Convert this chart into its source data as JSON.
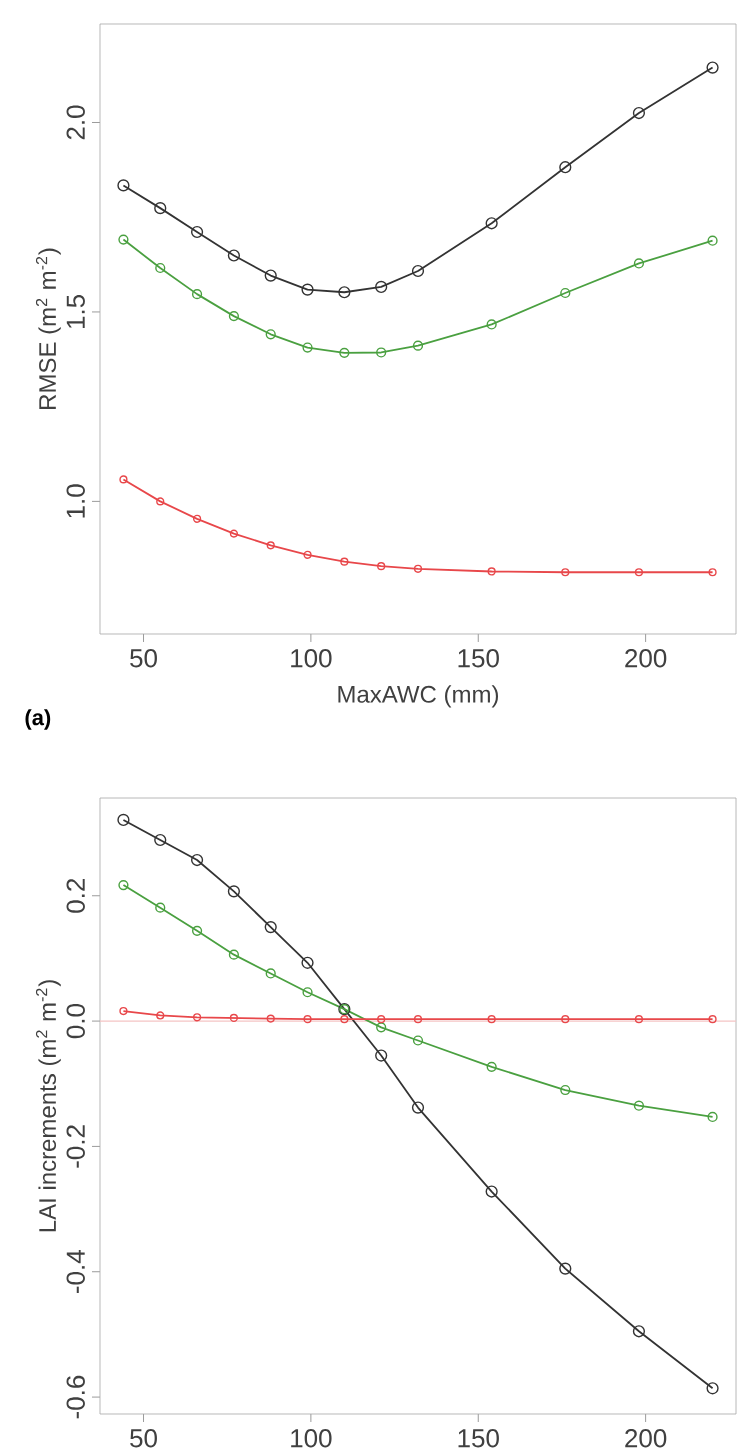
{
  "chart_data": [
    {
      "type": "line",
      "ylabel": "RMSE  (m$^{2}$ m$^{-2}$)",
      "xlabel": "MaxAWC (mm)",
      "annotations": [
        "(a)"
      ],
      "marker": "circle",
      "grid": false,
      "x": [
        44,
        55,
        66,
        77,
        88,
        99,
        110,
        121,
        132,
        154,
        176,
        198,
        220
      ],
      "xlim": [
        37,
        227
      ],
      "xticks": [
        50,
        100,
        150,
        200
      ],
      "ylim": [
        0.65,
        2.26
      ],
      "yticks": [
        {
          "value": 1.0,
          "label": "1.0"
        },
        1.5,
        {
          "value": 2.0,
          "label": "2.0"
        }
      ],
      "series": [
        {
          "color": "#333333",
          "values": [
            1.834,
            1.774,
            1.711,
            1.649,
            1.596,
            1.559,
            1.552,
            1.566,
            1.608,
            1.734,
            1.882,
            2.025,
            2.145
          ]
        },
        {
          "color": "#4aa040",
          "values": [
            1.691,
            1.616,
            1.547,
            1.489,
            1.441,
            1.406,
            1.392,
            1.393,
            1.411,
            1.467,
            1.55,
            1.628,
            1.688
          ]
        },
        {
          "color": "#e8474a",
          "values": [
            1.058,
            1.0,
            0.954,
            0.915,
            0.884,
            0.859,
            0.841,
            0.829,
            0.822,
            0.815,
            0.813,
            0.813,
            0.813
          ]
        }
      ]
    },
    {
      "type": "line",
      "ylabel": "LAI increments  (m$^{2}$ m$^{-2}$)",
      "marker": "circle",
      "grid": false,
      "x": [
        44,
        55,
        66,
        77,
        88,
        99,
        110,
        121,
        132,
        154,
        176,
        198,
        220
      ],
      "xlim": [
        37,
        227
      ],
      "xticks": [
        50,
        100,
        150,
        200
      ],
      "ylim": [
        -0.627,
        0.356
      ],
      "yticks": [
        -0.6,
        -0.4,
        -0.2,
        {
          "value": 0.0,
          "label": "0.0"
        },
        0.2
      ],
      "ref_lines": [
        {
          "axis": "y",
          "value": 0,
          "color": "#f4c4c4"
        }
      ],
      "series": [
        {
          "color": "#333333",
          "values": [
            0.321,
            0.289,
            0.257,
            0.207,
            0.15,
            0.093,
            0.019,
            -0.055,
            -0.138,
            -0.272,
            -0.395,
            -0.495,
            -0.586
          ]
        },
        {
          "color": "#4aa040",
          "values": [
            0.217,
            0.181,
            0.144,
            0.106,
            0.076,
            0.046,
            0.019,
            -0.01,
            -0.031,
            -0.073,
            -0.11,
            -0.135,
            -0.153
          ]
        },
        {
          "color": "#e8474a",
          "values": [
            0.016,
            0.009,
            0.006,
            0.005,
            0.004,
            0.003,
            0.003,
            0.003,
            0.003,
            0.003,
            0.003,
            0.003,
            0.003
          ]
        }
      ]
    }
  ]
}
